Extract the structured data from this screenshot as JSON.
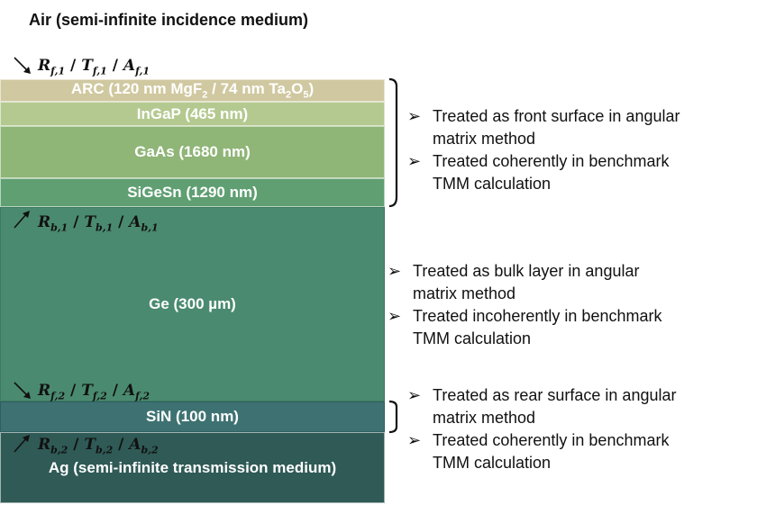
{
  "top_label": "Air (semi-infinite incidence medium)",
  "layers": {
    "arc": {
      "prefix": "ARC (120 nm MgF",
      "sub1": "2",
      "mid": " / 74 nm Ta",
      "sub2": "2",
      "mid2": "O",
      "sub3": "5",
      "suffix": ")"
    },
    "ingap": "InGaP (465 nm)",
    "gaas": "GaAs (1680 nm)",
    "sigesn": "SiGeSn (1290 nm)",
    "ge": "Ge (300 µm)",
    "sin": "SiN (100 nm)",
    "ag": "Ag (semi-infinite transmission medium)"
  },
  "coefficients": {
    "front_1": {
      "R": "R",
      "T": "T",
      "A": "A",
      "sub": "f,1",
      "sep": "/"
    },
    "back_1": {
      "R": "R",
      "T": "T",
      "A": "A",
      "sub": "b,1",
      "sep": "/"
    },
    "front_2": {
      "R": "R",
      "T": "T",
      "A": "A",
      "sub": "f,2",
      "sep": "/"
    },
    "back_2": {
      "R": "R",
      "T": "T",
      "A": "A",
      "sub": "b,2",
      "sep": "/"
    }
  },
  "notes": {
    "front": {
      "bullet": "➢",
      "line1a": "Treated as front surface in angular",
      "line1b": "matrix method",
      "line2a": "Treated coherently in benchmark",
      "line2b": "TMM calculation"
    },
    "bulk": {
      "bullet": "➢",
      "line1a": "Treated as bulk layer in angular",
      "line1b": "matrix method",
      "line2a": "Treated incoherently in benchmark",
      "line2b": "TMM calculation"
    },
    "rear": {
      "bullet": "➢",
      "line1a": "Treated as rear surface in angular",
      "line1b": "matrix method",
      "line2a": "Treated coherently in benchmark",
      "line2b": "TMM calculation"
    }
  }
}
